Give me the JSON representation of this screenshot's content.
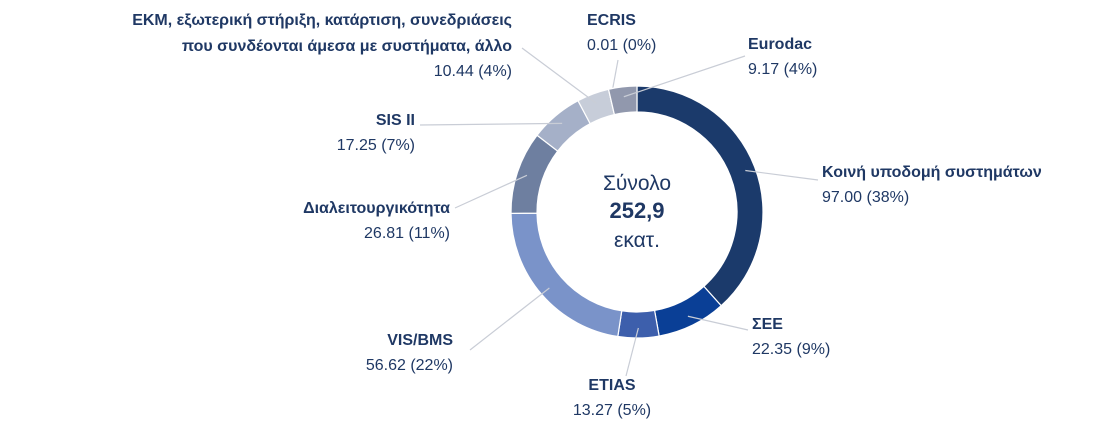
{
  "chart_data": {
    "type": "donut",
    "categories": [
      "Κοινή υποδομή συστημάτων",
      "ΣΕΕ",
      "ETIAS",
      "VIS/BMS",
      "Διαλειτουργικότητα",
      "SIS II",
      "ΕΚΜ, εξωτερική στήριξη, κατάρτιση, συνεδριάσεις\nπου συνδέονται άμεσα με συστήματα, άλλο",
      "ECRIS",
      "Eurodac"
    ],
    "values": [
      97.0,
      22.35,
      13.27,
      56.62,
      26.81,
      17.25,
      10.44,
      0.01,
      9.17
    ],
    "value_labels": [
      "97.00 (38%)",
      "22.35 (9%)",
      "13.27 (5%)",
      "56.62 (22%)",
      "26.81 (11%)",
      "17.25 (7%)",
      "10.44 (4%)",
      "0.01 (0%)",
      "9.17 (4%)"
    ],
    "colors": [
      "#1b3a6b",
      "#0a3f96",
      "#3d5fac",
      "#7a93c9",
      "#6e7fa0",
      "#a5b0c8",
      "#c7cdd9",
      "#d3d7df",
      "#9198ad"
    ],
    "center_text": [
      "Σύνολο",
      "252,9",
      "εκατ."
    ]
  }
}
